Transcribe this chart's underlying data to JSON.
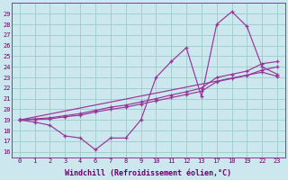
{
  "xlabel": "Windchill (Refroidissement éolien,°C)",
  "background_color": "#cce8ee",
  "grid_color": "#99cccc",
  "line_color": "#993399",
  "ylim": [
    15.5,
    30.0
  ],
  "yticks": [
    16,
    17,
    18,
    19,
    20,
    21,
    22,
    23,
    24,
    25,
    26,
    27,
    28,
    29
  ],
  "xtick_labels": [
    "0",
    "1",
    "2",
    "3",
    "4",
    "6",
    "7",
    "8",
    "9",
    "10",
    "11",
    "12",
    "13",
    "17",
    "18",
    "19",
    "22",
    "23"
  ],
  "series": [
    {
      "y": [
        19.0,
        18.8,
        18.5,
        17.5,
        17.3,
        16.2,
        17.3,
        17.3,
        19.0,
        23.0,
        24.5,
        25.8,
        21.2,
        28.0,
        29.2,
        27.8,
        24.0,
        23.3
      ]
    },
    {
      "y": [
        19.0,
        19.05,
        19.1,
        19.3,
        19.45,
        19.75,
        20.0,
        20.2,
        20.5,
        20.8,
        21.1,
        21.4,
        21.7,
        22.6,
        22.9,
        23.2,
        23.7,
        24.0
      ]
    },
    {
      "y": [
        19.0,
        19.1,
        19.2,
        19.4,
        19.6,
        19.9,
        20.2,
        20.4,
        20.7,
        21.0,
        21.35,
        21.65,
        22.0,
        23.0,
        23.3,
        23.6,
        24.3,
        24.5
      ]
    },
    {
      "y": [
        19.0,
        null,
        null,
        null,
        null,
        null,
        null,
        null,
        null,
        null,
        null,
        null,
        null,
        null,
        null,
        null,
        23.5,
        23.1
      ]
    }
  ]
}
